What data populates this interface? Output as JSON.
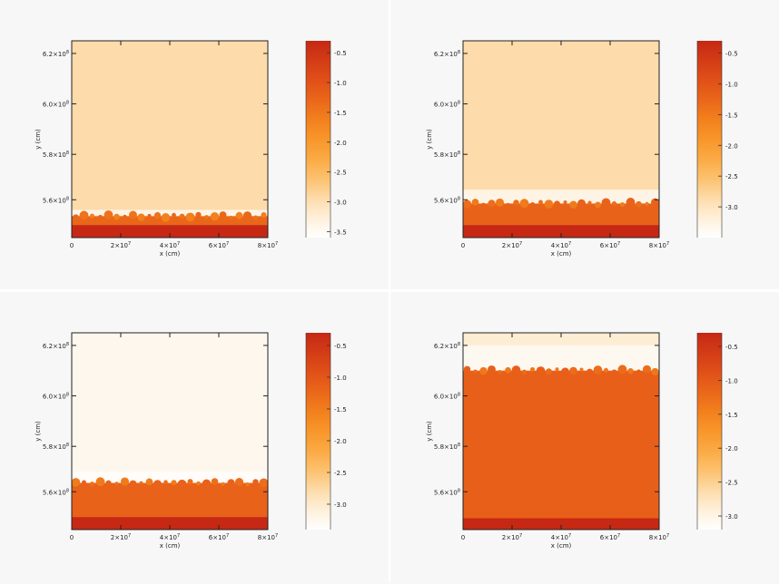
{
  "chart_data": [
    {
      "type": "heatmap",
      "panel": "top-left",
      "xlabel": "x (cm)",
      "ylabel": "y (cm)",
      "xlim": [
        0,
        80000000
      ],
      "ylim": [
        547000000,
        625000000
      ],
      "xticks": [
        {
          "base": "0",
          "exp": ""
        },
        {
          "base": "2×10",
          "exp": "7"
        },
        {
          "base": "4×10",
          "exp": "7"
        },
        {
          "base": "6×10",
          "exp": "7"
        },
        {
          "base": "8×10",
          "exp": "7"
        }
      ],
      "yticks": [
        {
          "value": 562000000,
          "base": "5.6×10",
          "exp": "8"
        },
        {
          "value": 580000000,
          "base": "5.8×10",
          "exp": "8"
        },
        {
          "value": 600000000,
          "base": "6.0×10",
          "exp": "8"
        },
        {
          "value": 620000000,
          "base": "6.2×10",
          "exp": "8"
        }
      ],
      "colorbar": {
        "range": [
          -3.6,
          -0.3
        ],
        "ticks": [
          "-0.5",
          "-1.0",
          "-1.5",
          "-2.0",
          "-2.5",
          "-3.0",
          "-3.5"
        ]
      },
      "layers": {
        "base_top": 552000000,
        "mix_top": 555500000,
        "mix_level": 0.7,
        "pale_top": 558000000,
        "fluid_level": 0.2
      }
    },
    {
      "type": "heatmap",
      "panel": "top-right",
      "xlabel": "x (cm)",
      "ylabel": "y (cm)",
      "xlim": [
        0,
        80000000
      ],
      "ylim": [
        547000000,
        625000000
      ],
      "xticks": [
        {
          "base": "0",
          "exp": ""
        },
        {
          "base": "2×10",
          "exp": "7"
        },
        {
          "base": "4×10",
          "exp": "7"
        },
        {
          "base": "6×10",
          "exp": "7"
        },
        {
          "base": "8×10",
          "exp": "7"
        }
      ],
      "yticks": [
        {
          "value": 562000000,
          "base": "5.6×10",
          "exp": "8"
        },
        {
          "value": 580000000,
          "base": "5.8×10",
          "exp": "8"
        },
        {
          "value": 600000000,
          "base": "6.0×10",
          "exp": "8"
        },
        {
          "value": 620000000,
          "base": "6.2×10",
          "exp": "8"
        }
      ],
      "colorbar": {
        "range": [
          -3.5,
          -0.3
        ],
        "ticks": [
          "-0.5",
          "-1.0",
          "-1.5",
          "-2.0",
          "-2.5",
          "-3.0"
        ]
      },
      "layers": {
        "base_top": 552000000,
        "mix_top": 560500000,
        "mix_level": 0.72,
        "pale_top": 566000000,
        "fluid_level": 0.2
      }
    },
    {
      "type": "heatmap",
      "panel": "bottom-left",
      "xlabel": "x (cm)",
      "ylabel": "y (cm)",
      "xlim": [
        0,
        80000000
      ],
      "ylim": [
        547000000,
        625000000
      ],
      "xticks": [
        {
          "base": "0",
          "exp": ""
        },
        {
          "base": "2×10",
          "exp": "7"
        },
        {
          "base": "4×10",
          "exp": "7"
        },
        {
          "base": "6×10",
          "exp": "7"
        },
        {
          "base": "8×10",
          "exp": "7"
        }
      ],
      "yticks": [
        {
          "value": 562000000,
          "base": "5.6×10",
          "exp": "8"
        },
        {
          "value": 580000000,
          "base": "5.8×10",
          "exp": "8"
        },
        {
          "value": 600000000,
          "base": "6.0×10",
          "exp": "8"
        },
        {
          "value": 620000000,
          "base": "6.2×10",
          "exp": "8"
        }
      ],
      "colorbar": {
        "range": [
          -3.4,
          -0.3
        ],
        "ticks": [
          "-0.5",
          "-1.0",
          "-1.5",
          "-2.0",
          "-2.5",
          "-3.0"
        ]
      },
      "layers": {
        "base_top": 552000000,
        "mix_top": 565500000,
        "mix_level": 0.72,
        "pale_top": 570000000,
        "fluid_level": 0.05
      }
    },
    {
      "type": "heatmap",
      "panel": "bottom-right",
      "xlabel": "x (cm)",
      "ylabel": "y (cm)",
      "xlim": [
        0,
        80000000
      ],
      "ylim": [
        547000000,
        625000000
      ],
      "xticks": [
        {
          "base": "0",
          "exp": ""
        },
        {
          "base": "2×10",
          "exp": "7"
        },
        {
          "base": "4×10",
          "exp": "7"
        },
        {
          "base": "6×10",
          "exp": "7"
        },
        {
          "base": "8×10",
          "exp": "7"
        }
      ],
      "yticks": [
        {
          "value": 562000000,
          "base": "5.6×10",
          "exp": "8"
        },
        {
          "value": 580000000,
          "base": "5.8×10",
          "exp": "8"
        },
        {
          "value": 600000000,
          "base": "6.0×10",
          "exp": "8"
        },
        {
          "value": 620000000,
          "base": "6.2×10",
          "exp": "8"
        }
      ],
      "colorbar": {
        "range": [
          -3.2,
          -0.3
        ],
        "ticks": [
          "-0.5",
          "-1.0",
          "-1.5",
          "-2.0",
          "-2.5",
          "-3.0"
        ]
      },
      "layers": {
        "base_top": 551500000,
        "mix_top": 610000000,
        "mix_level": 0.73,
        "pale_top": 620000000,
        "fluid_level": 0.12
      }
    }
  ]
}
